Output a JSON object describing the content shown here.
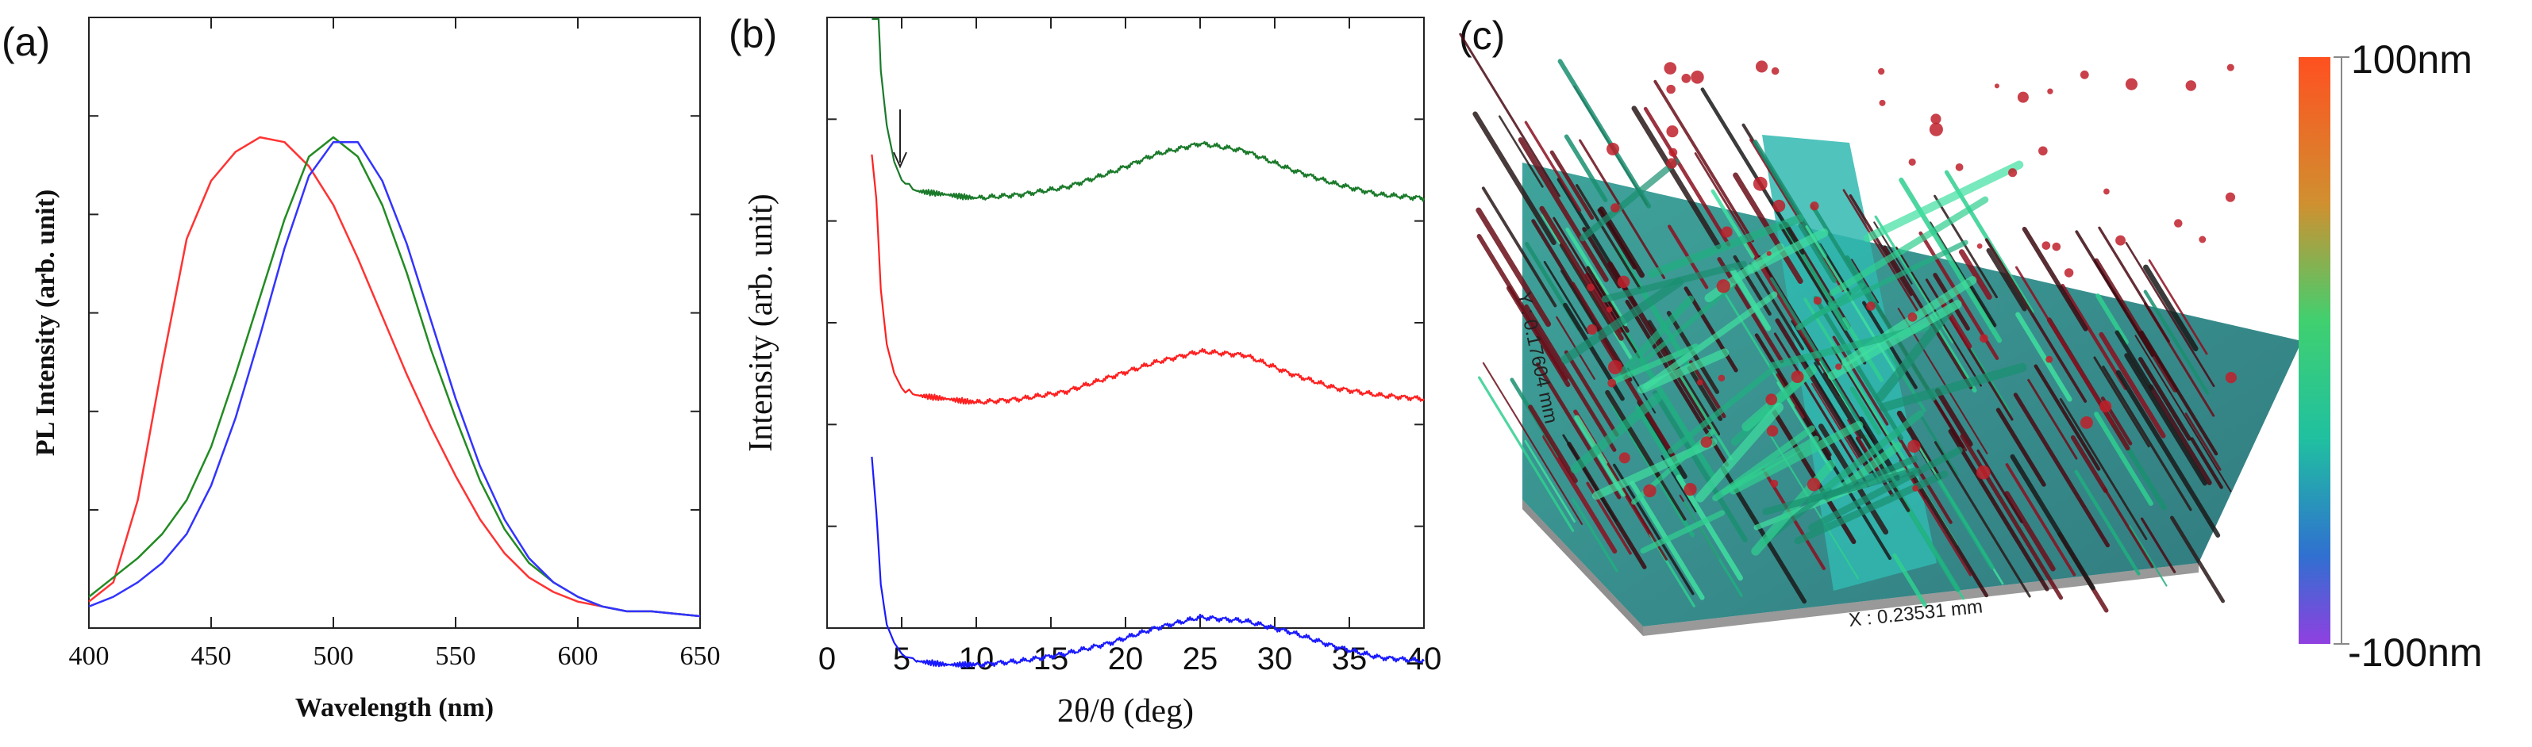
{
  "panel_labels": {
    "a": "(a)",
    "b": "(b)",
    "c": "(c)"
  },
  "chart_data": [
    {
      "type": "line",
      "panel": "(a)",
      "xlabel": "Wavelength (nm)",
      "ylabel": "PL Intensity (arb. unit)",
      "xlim": [
        400,
        650
      ],
      "ylim": [
        0,
        1.0
      ],
      "x_ticks": [
        400,
        450,
        500,
        550,
        600,
        650
      ],
      "grid": false,
      "series": [
        {
          "color": "#ff3333",
          "peak": 472,
          "values_x": [
            400,
            410,
            420,
            430,
            440,
            450,
            460,
            470,
            480,
            490,
            500,
            510,
            520,
            530,
            540,
            550,
            560,
            570,
            580,
            590,
            600,
            610,
            620,
            630,
            640,
            650
          ],
          "values_y": [
            0.03,
            0.07,
            0.24,
            0.52,
            0.78,
            0.9,
            0.96,
            0.99,
            0.98,
            0.93,
            0.85,
            0.74,
            0.62,
            0.5,
            0.39,
            0.29,
            0.2,
            0.13,
            0.08,
            0.05,
            0.03,
            0.02,
            0.01,
            0.01,
            0.005,
            0.0
          ]
        },
        {
          "color": "#228b22",
          "peak": 500,
          "values_x": [
            400,
            410,
            420,
            430,
            440,
            450,
            460,
            470,
            480,
            490,
            500,
            510,
            520,
            530,
            540,
            550,
            560,
            570,
            580,
            590,
            600,
            610,
            620,
            630,
            640,
            650
          ],
          "values_y": [
            0.04,
            0.08,
            0.12,
            0.17,
            0.24,
            0.35,
            0.5,
            0.66,
            0.82,
            0.95,
            0.99,
            0.95,
            0.85,
            0.71,
            0.55,
            0.41,
            0.28,
            0.18,
            0.11,
            0.07,
            0.04,
            0.02,
            0.01,
            0.01,
            0.005,
            0.0
          ]
        },
        {
          "color": "#3333ff",
          "peak": 506,
          "values_x": [
            400,
            410,
            420,
            430,
            440,
            450,
            460,
            470,
            480,
            490,
            500,
            510,
            520,
            530,
            540,
            550,
            560,
            570,
            580,
            590,
            600,
            610,
            620,
            630,
            640,
            650
          ],
          "values_y": [
            0.02,
            0.04,
            0.07,
            0.11,
            0.17,
            0.27,
            0.41,
            0.58,
            0.76,
            0.91,
            0.98,
            0.98,
            0.9,
            0.77,
            0.61,
            0.45,
            0.31,
            0.2,
            0.12,
            0.07,
            0.04,
            0.02,
            0.01,
            0.01,
            0.005,
            0.0
          ]
        }
      ]
    },
    {
      "type": "line",
      "panel": "(b)",
      "xlabel": "2θ/θ (deg)",
      "ylabel": "Intensity (arb. unit)",
      "xlim": [
        0,
        40
      ],
      "x_ticks": [
        0,
        5,
        10,
        15,
        20,
        25,
        30,
        35,
        40
      ],
      "grid": false,
      "annotation": "arrow at 2θ ≈ 4.8° on top curve",
      "series": [
        {
          "color": "#1a7a2a",
          "x": [
            3,
            3.3,
            3.6,
            4,
            4.5,
            5,
            6,
            8,
            10,
            13,
            16,
            19,
            22,
            25,
            28,
            31,
            34,
            37,
            40
          ],
          "y": [
            1.0,
            0.85,
            0.55,
            0.4,
            0.3,
            0.25,
            0.22,
            0.21,
            0.2,
            0.21,
            0.23,
            0.27,
            0.32,
            0.35,
            0.33,
            0.28,
            0.24,
            0.21,
            0.2
          ]
        },
        {
          "color": "#ff2020",
          "x": [
            3,
            3.3,
            3.6,
            4,
            4.5,
            5,
            6,
            8,
            10,
            13,
            16,
            19,
            22,
            25,
            28,
            31,
            34,
            37,
            40
          ],
          "y": [
            0.82,
            0.7,
            0.45,
            0.3,
            0.22,
            0.18,
            0.16,
            0.15,
            0.14,
            0.15,
            0.17,
            0.21,
            0.25,
            0.28,
            0.27,
            0.22,
            0.18,
            0.16,
            0.15
          ]
        },
        {
          "color": "#1a1aff",
          "x": [
            3,
            3.3,
            3.6,
            4,
            4.5,
            5,
            6,
            8,
            10,
            13,
            16,
            19,
            22,
            25,
            28,
            31,
            34,
            37,
            40
          ],
          "y": [
            0.6,
            0.45,
            0.25,
            0.14,
            0.09,
            0.06,
            0.04,
            0.03,
            0.03,
            0.04,
            0.06,
            0.09,
            0.13,
            0.16,
            0.15,
            0.12,
            0.08,
            0.05,
            0.04
          ]
        }
      ]
    }
  ],
  "afm": {
    "x_axis": "X : 0.23531 mm",
    "y_axis": "Y : 0.17604 mm",
    "colorbar": {
      "max": "100nm",
      "min": "-100nm"
    },
    "colors": {
      "top": "#ff5020",
      "mid_high": "#c0c030",
      "mid": "#20d080",
      "mid_low": "#20a0c0",
      "bottom": "#8040e0"
    }
  }
}
